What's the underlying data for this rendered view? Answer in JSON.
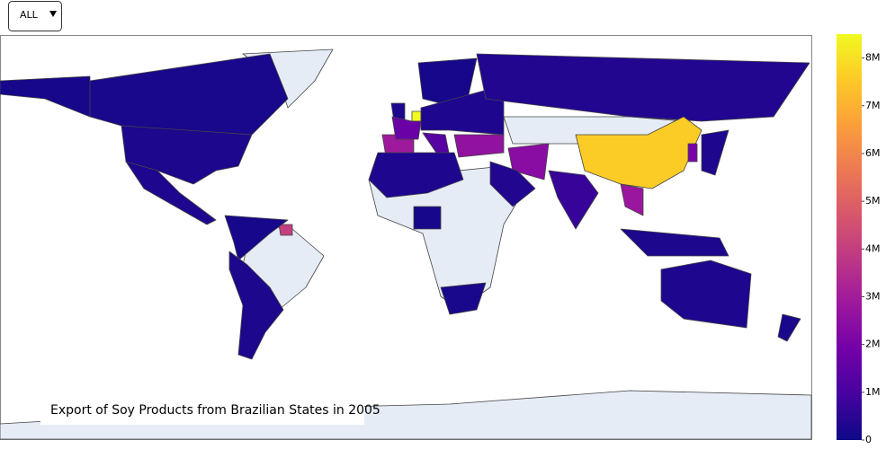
{
  "dropdown": {
    "label": "ALL"
  },
  "chart_data": {
    "type": "choropleth",
    "title": "Export of Soy Products from Brazilian States in 2005",
    "values": [
      200000,
      150000,
      250000,
      300000,
      4000000,
      150000,
      2900000,
      2600000,
      250000,
      8500000,
      1700000,
      1300000,
      150000,
      300000,
      350000,
      7600000,
      300000,
      2400000,
      350000,
      200000,
      150000,
      250000,
      700000,
      2800000,
      250000,
      2000000,
      300000,
      300000,
      200000
    ],
    "zlim": [
      0,
      8500000
    ],
    "colorscale": [
      "#0d0887",
      "#46039f",
      "#7201a8",
      "#9c179e",
      "#bd3786",
      "#d8576b",
      "#ed7953",
      "#fb9f3a",
      "#fdca26",
      "#f0f921"
    ],
    "cticks": [
      0,
      {
        "value": 1000000,
        "label": "1M"
      },
      {
        "value": 2000000,
        "label": "2M"
      },
      {
        "value": 3000000,
        "label": "3M"
      },
      {
        "value": 4000000,
        "label": "4M"
      },
      {
        "value": 5000000,
        "label": "5M"
      },
      {
        "value": 6000000,
        "label": "6M"
      },
      {
        "value": 7000000,
        "label": "7M"
      },
      {
        "value": 8000000,
        "label": "8M"
      }
    ]
  }
}
